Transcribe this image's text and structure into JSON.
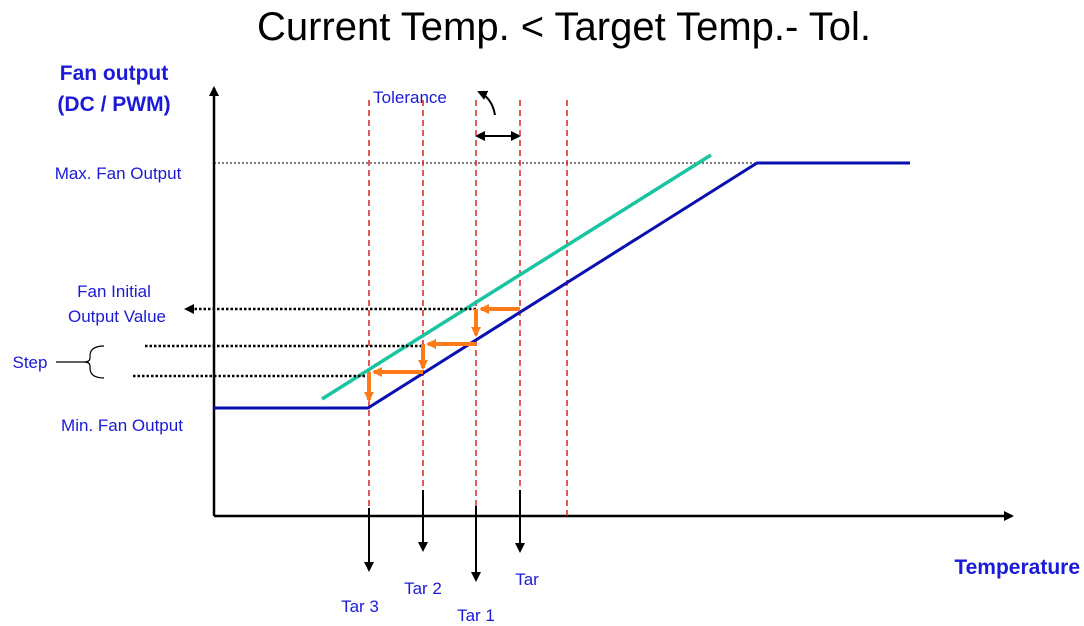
{
  "title": "Current Temp. < Target Temp.- Tol.",
  "y_axis": {
    "label_line1": "Fan output",
    "label_line2": "(DC / PWM)"
  },
  "x_axis": {
    "label": "Temperature"
  },
  "labels": {
    "max_fan_output": "Max. Fan Output",
    "min_fan_output": "Min. Fan Output",
    "fan_initial_line1": "Fan Initial",
    "fan_initial_line2": "Output Value",
    "step": "Step",
    "tolerance": "Tolerance"
  },
  "targets": {
    "tar": "Tar",
    "tar1": "Tar 1",
    "tar2": "Tar 2",
    "tar3": "Tar 3"
  },
  "colors": {
    "axis": "#000000",
    "label_blue": "#1a1ad8",
    "fan_curve": "#0a10b0",
    "shifted_curve": "#19c4a0",
    "target_lines": "#e02020",
    "step_arrows": "#ff7a1a"
  }
}
